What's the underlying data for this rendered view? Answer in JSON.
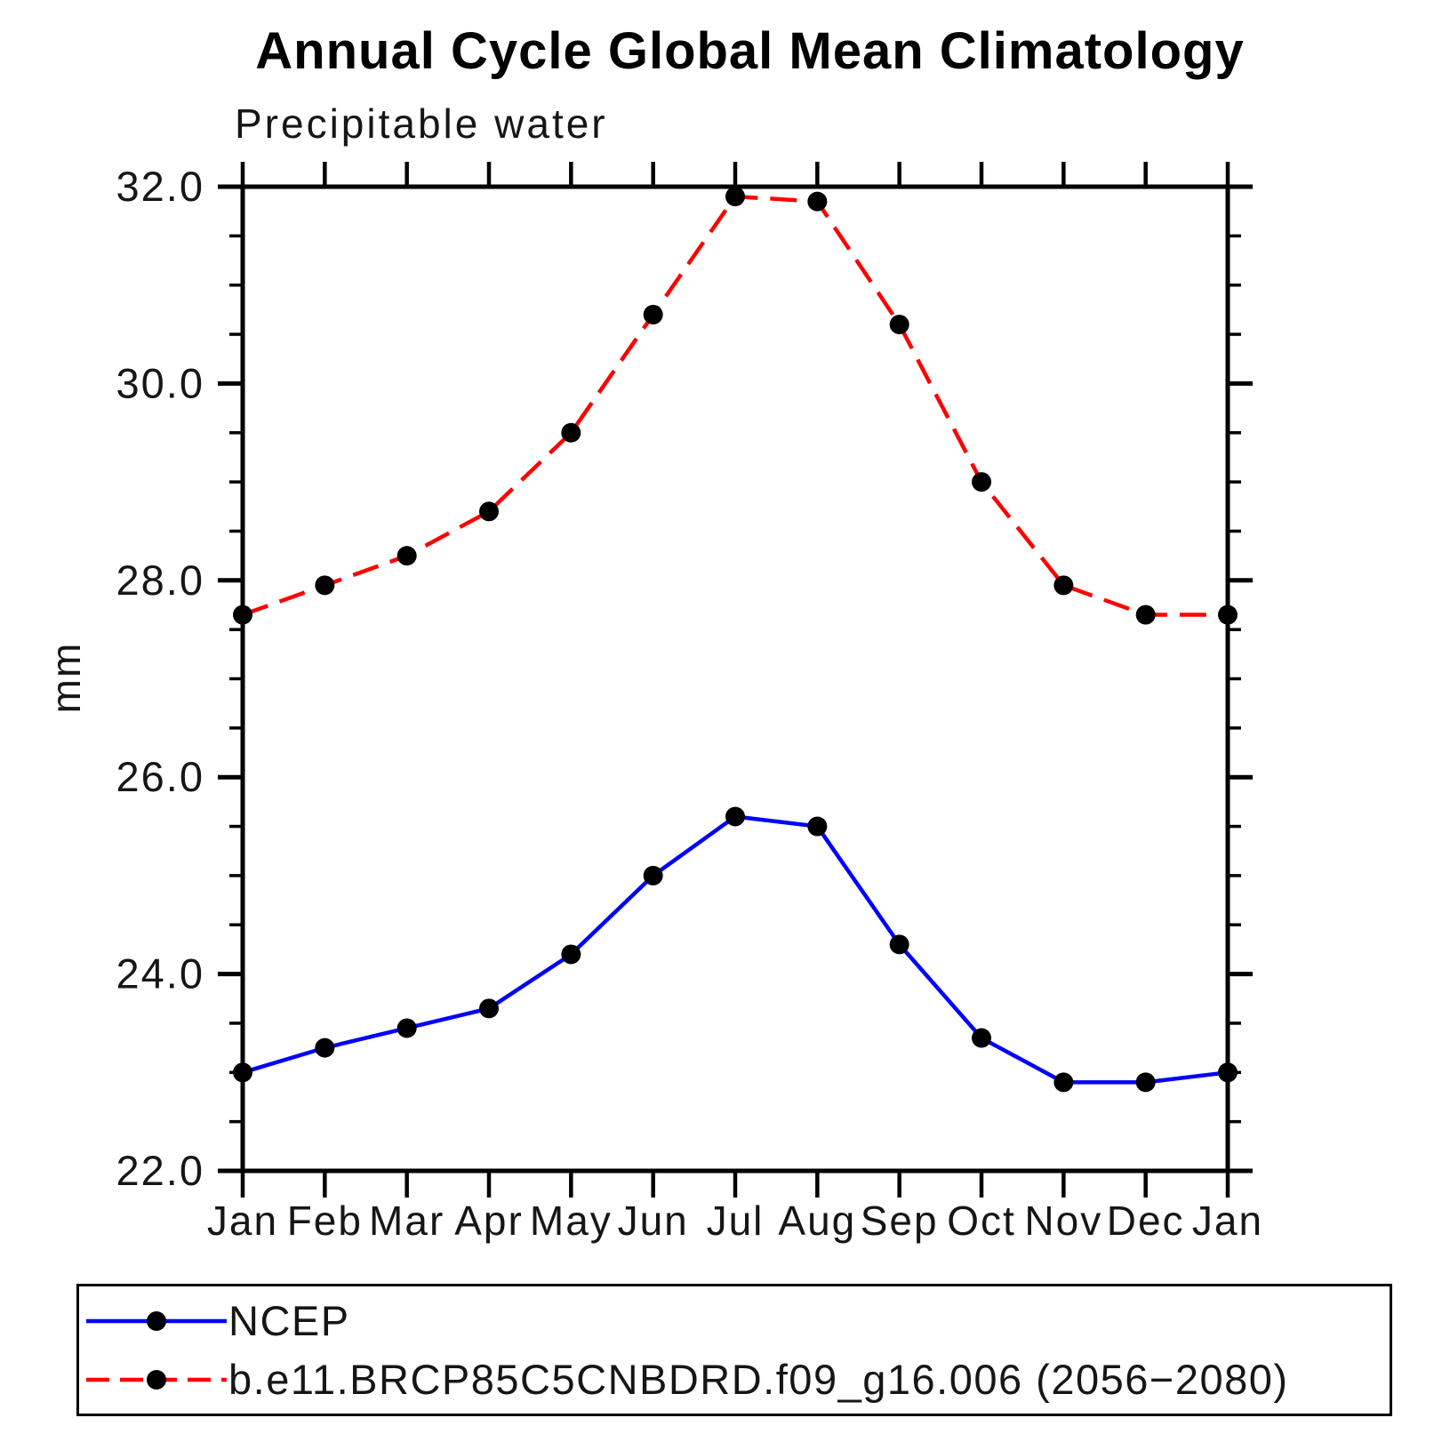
{
  "chart_data": {
    "type": "line",
    "title": "Annual Cycle Global Mean Climatology",
    "subtitle": "Precipitable water",
    "ylabel": "mm",
    "ylim": [
      22.0,
      32.0
    ],
    "ytick_step": 2.0,
    "ytick_minor_step": 0.5,
    "ytick_labels": [
      "22.0",
      "24.0",
      "26.0",
      "28.0",
      "30.0",
      "32.0"
    ],
    "grid": false,
    "legend_position": "bottom-left",
    "frame_color": "#000000",
    "categories": [
      "Jan",
      "Feb",
      "Mar",
      "Apr",
      "May",
      "Jun",
      "Jul",
      "Aug",
      "Sep",
      "Oct",
      "Nov",
      "Dec",
      "Jan"
    ],
    "series": [
      {
        "name": "NCEP",
        "color": "#0000ff",
        "line_style": "solid",
        "marker": "circle",
        "marker_color": "#000000",
        "values": [
          23.0,
          23.25,
          23.45,
          23.65,
          24.2,
          25.0,
          25.6,
          25.5,
          24.3,
          23.35,
          22.9,
          22.9,
          23.0
        ]
      },
      {
        "name": "b.e11.BRCP85C5CNBDRD.f09_g16.006 (2056−2080)",
        "color": "#ff0000",
        "line_style": "dashed",
        "marker": "circle",
        "marker_color": "#000000",
        "values": [
          27.65,
          27.95,
          28.25,
          28.7,
          29.5,
          30.7,
          31.9,
          31.85,
          30.6,
          29.0,
          27.95,
          27.65,
          27.65
        ]
      }
    ]
  }
}
